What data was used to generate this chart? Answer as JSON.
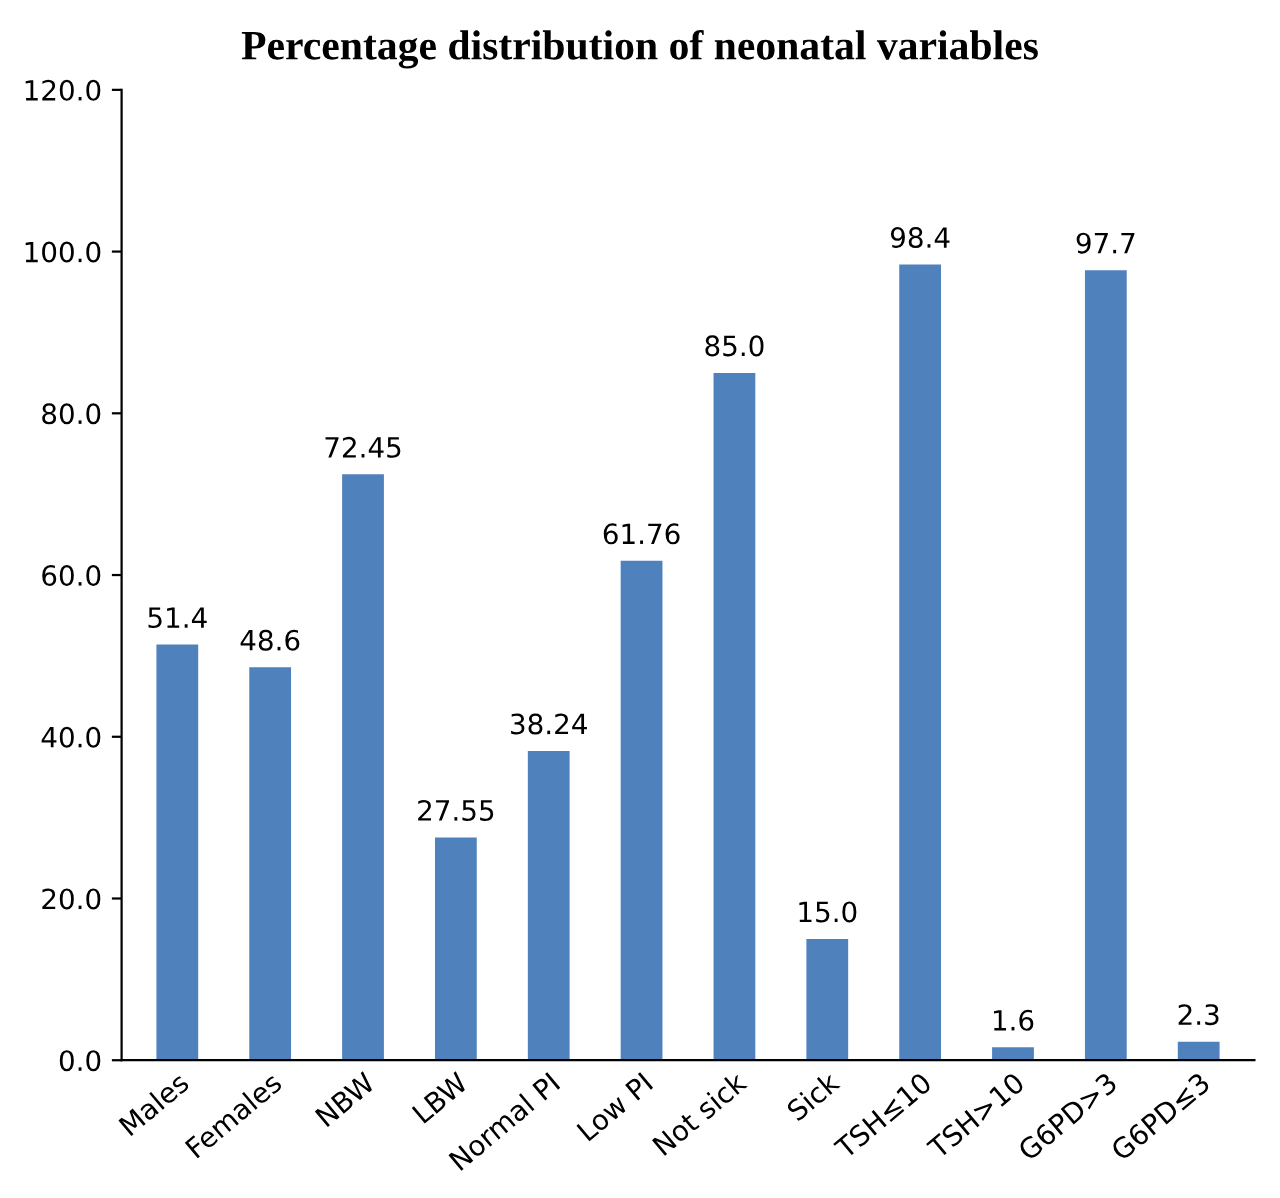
{
  "chart_data": {
    "type": "bar",
    "title": "Percentage distribution of neonatal variables",
    "categories": [
      "Males",
      "Females",
      "NBW",
      "LBW",
      "Normal PI",
      "Low PI",
      "Not sick",
      "Sick",
      "TSH≤10",
      "TSH>10",
      "G6PD>3",
      "G6PD≤3"
    ],
    "values": [
      51.4,
      48.6,
      72.45,
      27.55,
      38.24,
      61.76,
      85.0,
      15.0,
      98.4,
      1.6,
      97.7,
      2.3
    ],
    "value_labels": [
      "51.4",
      "48.6",
      "72.45",
      "27.55",
      "38.24",
      "61.76",
      "85.0",
      "15.0",
      "98.4",
      "1.6",
      "97.7",
      "2.3"
    ],
    "color": "#4f81bd",
    "ylim": [
      0,
      120
    ],
    "yticks": [
      {
        "value": 0,
        "label": "0.0"
      },
      {
        "value": 20,
        "label": "20.0"
      },
      {
        "value": 40,
        "label": "40.0"
      },
      {
        "value": 60,
        "label": "60.0"
      },
      {
        "value": 80,
        "label": "80.0"
      },
      {
        "value": 100,
        "label": "100.0"
      },
      {
        "value": 120,
        "label": "120.0"
      }
    ],
    "grid": false,
    "legend": false
  }
}
